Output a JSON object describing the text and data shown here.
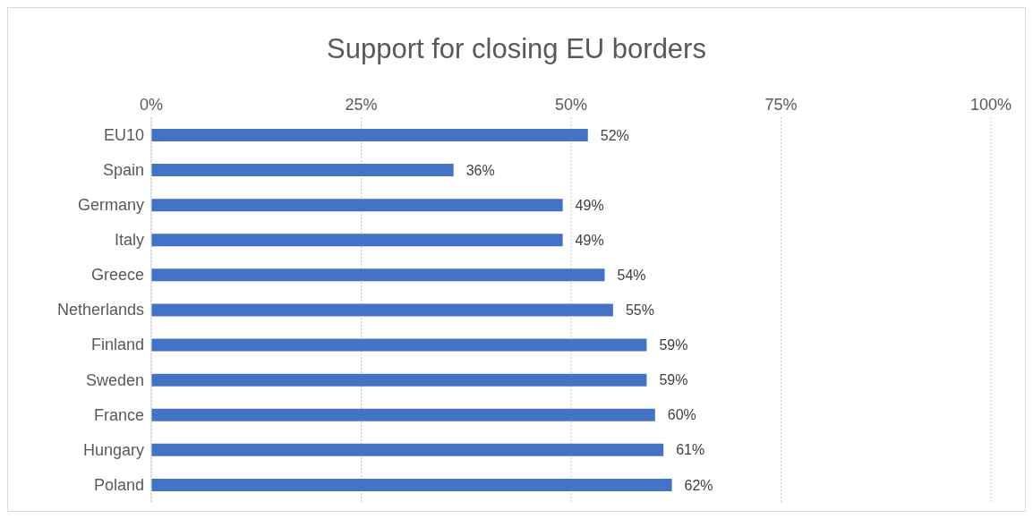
{
  "chart_data": {
    "type": "bar",
    "orientation": "horizontal",
    "title": "Support for closing EU borders",
    "categories": [
      "EU10",
      "Spain",
      "Germany",
      "Italy",
      "Greece",
      "Netherlands",
      "Finland",
      "Sweden",
      "France",
      "Hungary",
      "Poland"
    ],
    "values": [
      52,
      36,
      49,
      49,
      54,
      55,
      59,
      59,
      60,
      61,
      62
    ],
    "value_labels": [
      "52%",
      "36%",
      "49%",
      "49%",
      "54%",
      "55%",
      "59%",
      "59%",
      "60%",
      "61%",
      "62%"
    ],
    "color": "#4472c4",
    "xlim": [
      0,
      100
    ],
    "xticks": [
      {
        "value": 0,
        "label": "0%"
      },
      {
        "value": 25,
        "label": "25%"
      },
      {
        "value": 50,
        "label": "50%"
      },
      {
        "value": 75,
        "label": "75%"
      },
      {
        "value": 100,
        "label": "100%"
      }
    ],
    "grid": "x"
  }
}
